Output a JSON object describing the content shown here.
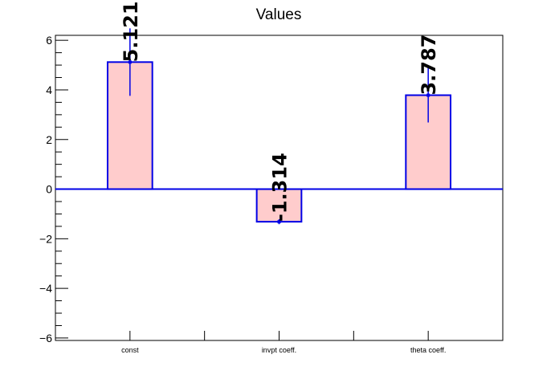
{
  "chart_data": {
    "type": "bar",
    "title": "Values",
    "categories": [
      "const",
      "invpt coeff.",
      "theta coeff."
    ],
    "values": [
      5.121,
      -1.314,
      3.787
    ],
    "errors": [
      1.36,
      0.1,
      1.1
    ],
    "value_labels": [
      "5.121",
      "-1.314",
      "3.787"
    ],
    "ylim": [
      -6.1,
      6.2
    ],
    "yticks": [
      -6,
      -4,
      -2,
      0,
      2,
      4,
      6
    ],
    "ytick_labels": [
      "−6",
      "−4",
      "−2",
      "0",
      "2",
      "4",
      "6"
    ],
    "grid": false,
    "legend": "none",
    "colors": {
      "bar_fill": "#ffcccc",
      "bar_edge": "#0000e6",
      "baseline": "#0000e6",
      "axis": "#000000"
    }
  }
}
